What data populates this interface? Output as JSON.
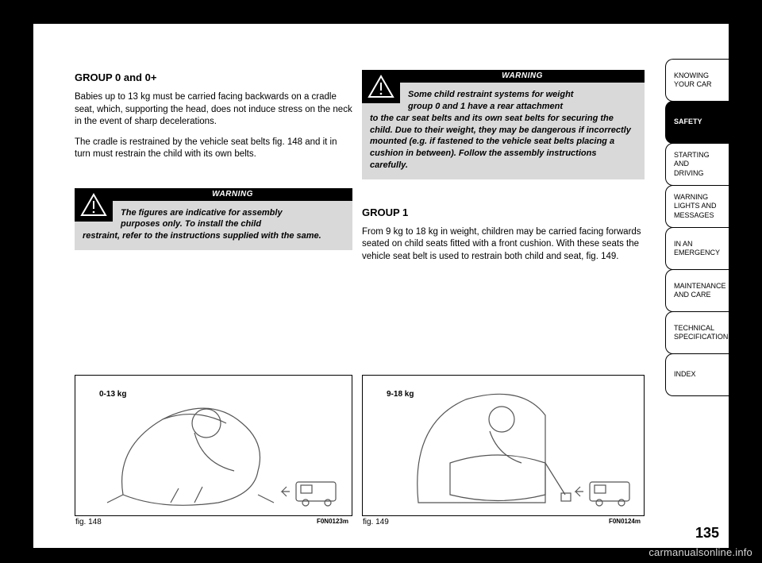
{
  "page_number": "135",
  "watermark": "carmanualsonline.info",
  "left": {
    "heading": "GROUP 0 and 0+",
    "para1": "Babies up to 13 kg must be carried facing backwards on a cradle seat, which, supporting the head, does not induce stress on the neck in the event of sharp decelerations.",
    "para2": "The cradle is restrained by the vehicle seat belts fig. 148 and it in turn must restrain the child with its own belts."
  },
  "right": {
    "heading": "GROUP 1",
    "para1": "From 9 kg to 18 kg in weight, children may be carried facing forwards seated on child seats fitted with a front cushion. With these seats the vehicle seat belt is used to restrain both child and seat, fig. 149."
  },
  "warning1": {
    "label": "WARNING",
    "icon": "warning-triangle-icon",
    "line1": "The figures are indicative for assembly",
    "line2": "purposes only. To install the child",
    "rest": "restraint, refer to the instructions supplied with the same."
  },
  "warning2": {
    "label": "WARNING",
    "icon": "warning-triangle-icon",
    "line1": "Some child restraint systems for weight",
    "line2": "group 0 and 1 have a rear attachment",
    "rest": "to the car seat belts and its own seat belts for securing the child. Due to their weight, they may be dangerous if incorrectly mounted (e.g. if fastened to the vehicle seat belts placing a cushion in between). Follow the assembly instructions carefully."
  },
  "fig148": {
    "weight_label": "0-13 kg",
    "caption": "fig. 148",
    "code": "F0N0123m"
  },
  "fig149": {
    "weight_label": "9-18 kg",
    "caption": "fig. 149",
    "code": "F0N0124m"
  },
  "tabs": [
    {
      "label": "KNOWING\nYOUR CAR",
      "active": false
    },
    {
      "label": "SAFETY",
      "active": true
    },
    {
      "label": "STARTING\nAND\nDRIVING",
      "active": false
    },
    {
      "label": "WARNING\nLIGHTS AND\nMESSAGES",
      "active": false
    },
    {
      "label": "IN AN\nEMERGENCY",
      "active": false
    },
    {
      "label": "MAINTENANCE\nAND CARE",
      "active": false
    },
    {
      "label": "TECHNICAL\nSPECIFICATIONS",
      "active": false
    },
    {
      "label": "INDEX",
      "active": false
    }
  ],
  "colors": {
    "page_bg": "#ffffff",
    "outer_bg": "#000000",
    "warn_bg": "#d9d9d9",
    "watermark": "#d7d7d7"
  }
}
